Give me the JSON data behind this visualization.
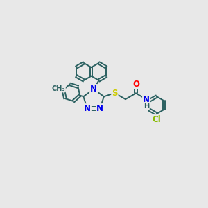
{
  "bg_color": "#e8e8e8",
  "bond_color": "#2a6060",
  "bond_width": 1.4,
  "atom_colors": {
    "N": "#0000ee",
    "S": "#cccc00",
    "O": "#ff0000",
    "Cl": "#88bb00",
    "C": "#2a6060"
  },
  "font_size": 8.5,
  "fig_size": [
    3.0,
    3.0
  ],
  "dpi": 100,
  "xlim": [
    0.0,
    10.0
  ],
  "ylim": [
    0.0,
    10.0
  ]
}
